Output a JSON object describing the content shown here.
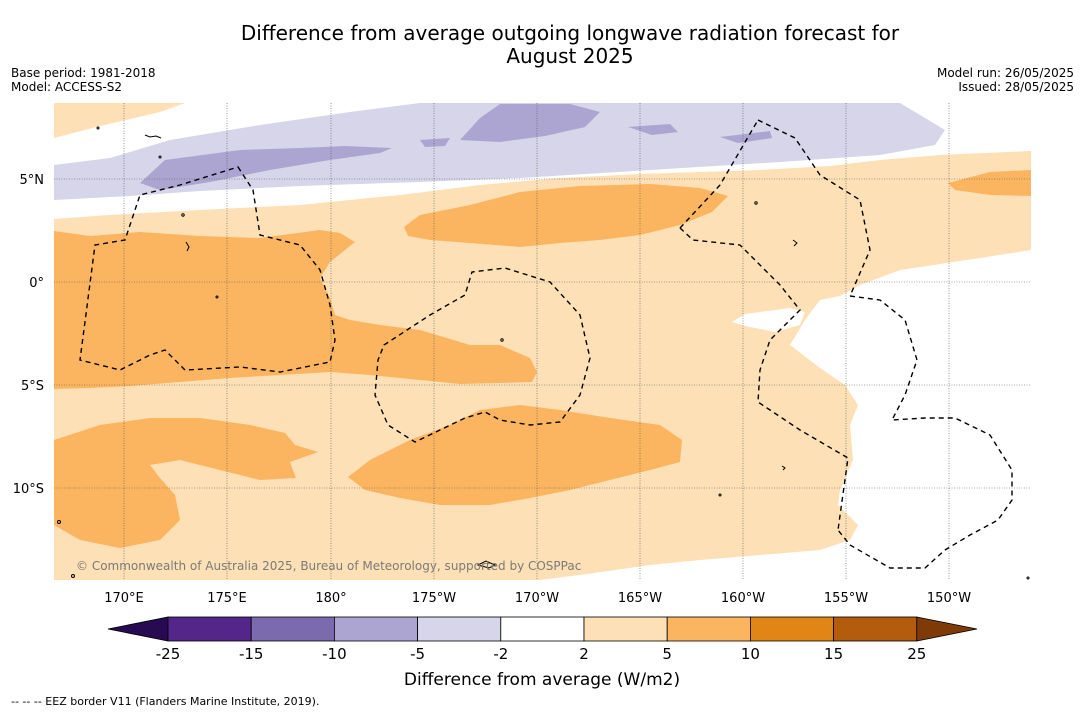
{
  "title_line1": "Difference from average outgoing longwave radiation forecast for",
  "title_line2": "August 2025",
  "base_period": "Base period: 1981-2018",
  "model": "Model: ACCESS-S2",
  "model_run": "Model run: 26/05/2025",
  "issued": "Issued: 28/05/2025",
  "copyright": "© Commonwealth of Australia 2025, Bureau of Meteorology, supported by COSPPac",
  "lat_labels": [
    "5°N",
    "0°",
    "5°S",
    "10°S"
  ],
  "lon_labels": [
    "170°E",
    "175°E",
    "180°",
    "175°W",
    "170°W",
    "165°W",
    "160°W",
    "155°W",
    "150°W"
  ],
  "colorbar": {
    "ticks": [
      "-25",
      "-15",
      "-10",
      "-5",
      "-2",
      "2",
      "5",
      "10",
      "15",
      "25"
    ],
    "colors": [
      "#270a52",
      "#55268a",
      "#7b6aad",
      "#aca5d1",
      "#d6d5e9",
      "#ffffff",
      "#fde0b5",
      "#fbb560",
      "#e08516",
      "#b35c0e",
      "#7e3b08"
    ],
    "label": "Difference from average (W/m2)"
  },
  "footer": "-- -- -- EEZ border V11 (Flanders Marine Institute, 2019).",
  "colors": {
    "orange_light": "#fde0b5",
    "orange_mid": "#fbb560",
    "lavender_light": "#d6d5e9",
    "lavender_mid": "#aca5d1"
  }
}
